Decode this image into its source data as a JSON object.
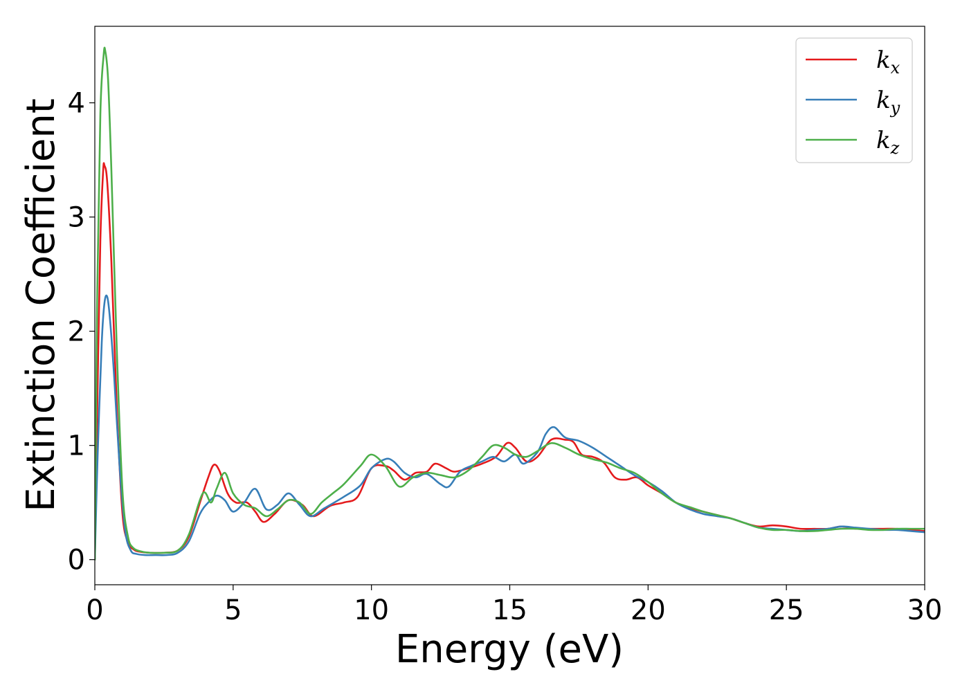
{
  "chart_data": {
    "type": "line",
    "title": "",
    "xlabel": "Energy (eV)",
    "ylabel": "Extinction Coefficient",
    "xlim": [
      0,
      30
    ],
    "ylim": [
      -0.22,
      4.67
    ],
    "xticks": [
      0,
      5,
      10,
      15,
      20,
      25,
      30
    ],
    "xtick_labels": [
      "0",
      "5",
      "10",
      "15",
      "20",
      "25",
      "30"
    ],
    "yticks": [
      0,
      1,
      2,
      3,
      4
    ],
    "ytick_labels": [
      "0",
      "1",
      "2",
      "3",
      "4"
    ],
    "grid": false,
    "legend_position": "top-right",
    "series": [
      {
        "name": "kx",
        "legend_base": "k",
        "legend_sub": "x",
        "color": "#e41a1c",
        "x": [
          0,
          0.1,
          0.2,
          0.3,
          0.35,
          0.45,
          0.6,
          0.8,
          1.0,
          1.2,
          1.4,
          1.6,
          2.0,
          2.5,
          3.0,
          3.4,
          3.8,
          4.1,
          4.3,
          4.5,
          4.8,
          5.1,
          5.5,
          5.8,
          6.1,
          6.5,
          7.0,
          7.5,
          7.9,
          8.5,
          9.0,
          9.5,
          10.0,
          10.5,
          10.8,
          11.2,
          11.6,
          12.0,
          12.3,
          12.7,
          13.0,
          13.5,
          14.0,
          14.5,
          14.9,
          15.2,
          15.6,
          16.0,
          16.5,
          17.0,
          17.3,
          17.6,
          18.0,
          18.4,
          18.8,
          19.2,
          19.6,
          20.0,
          20.5,
          21.0,
          21.5,
          22.0,
          22.5,
          23.0,
          23.5,
          24.0,
          24.5,
          25.0,
          25.5,
          26.0,
          26.5,
          27.0,
          27.5,
          28.0,
          28.5,
          29.0,
          29.5,
          30.0
        ],
        "y": [
          0.0,
          1.5,
          2.8,
          3.4,
          3.45,
          3.3,
          2.6,
          1.3,
          0.4,
          0.15,
          0.09,
          0.07,
          0.06,
          0.06,
          0.08,
          0.2,
          0.5,
          0.72,
          0.83,
          0.78,
          0.58,
          0.5,
          0.5,
          0.42,
          0.33,
          0.4,
          0.52,
          0.48,
          0.38,
          0.47,
          0.5,
          0.55,
          0.8,
          0.82,
          0.78,
          0.7,
          0.76,
          0.77,
          0.84,
          0.8,
          0.77,
          0.8,
          0.84,
          0.9,
          1.02,
          0.98,
          0.86,
          0.9,
          1.05,
          1.05,
          1.03,
          0.92,
          0.9,
          0.85,
          0.72,
          0.7,
          0.72,
          0.65,
          0.58,
          0.5,
          0.45,
          0.42,
          0.39,
          0.36,
          0.32,
          0.29,
          0.3,
          0.29,
          0.27,
          0.27,
          0.27,
          0.29,
          0.27,
          0.27,
          0.27,
          0.27,
          0.26,
          0.25
        ]
      },
      {
        "name": "ky",
        "legend_base": "k",
        "legend_sub": "y",
        "color": "#377eb8",
        "x": [
          0,
          0.1,
          0.25,
          0.35,
          0.45,
          0.55,
          0.7,
          0.9,
          1.1,
          1.3,
          1.5,
          1.8,
          2.2,
          2.6,
          3.0,
          3.4,
          3.8,
          4.1,
          4.4,
          4.7,
          5.0,
          5.4,
          5.8,
          6.2,
          6.6,
          7.0,
          7.4,
          7.8,
          8.3,
          9.0,
          9.6,
          10.0,
          10.5,
          10.8,
          11.2,
          11.6,
          12.0,
          12.5,
          12.8,
          13.2,
          13.6,
          14.0,
          14.4,
          14.8,
          15.2,
          15.5,
          16.0,
          16.3,
          16.6,
          17.0,
          17.5,
          18.0,
          18.5,
          19.0,
          19.5,
          20.0,
          20.5,
          21.0,
          21.5,
          22.0,
          22.5,
          23.0,
          23.5,
          24.0,
          24.5,
          25.0,
          25.5,
          26.0,
          26.5,
          27.0,
          27.5,
          28.0,
          28.5,
          29.0,
          29.5,
          30.0
        ],
        "y": [
          0.0,
          0.9,
          1.9,
          2.25,
          2.3,
          2.1,
          1.6,
          0.8,
          0.25,
          0.08,
          0.05,
          0.04,
          0.04,
          0.04,
          0.06,
          0.16,
          0.4,
          0.5,
          0.56,
          0.52,
          0.42,
          0.5,
          0.62,
          0.44,
          0.48,
          0.58,
          0.48,
          0.38,
          0.45,
          0.55,
          0.65,
          0.8,
          0.88,
          0.86,
          0.76,
          0.72,
          0.75,
          0.66,
          0.64,
          0.77,
          0.82,
          0.86,
          0.9,
          0.86,
          0.92,
          0.84,
          0.94,
          1.1,
          1.16,
          1.07,
          1.04,
          0.98,
          0.9,
          0.82,
          0.74,
          0.68,
          0.6,
          0.5,
          0.44,
          0.4,
          0.38,
          0.36,
          0.32,
          0.28,
          0.27,
          0.26,
          0.25,
          0.26,
          0.27,
          0.29,
          0.28,
          0.27,
          0.26,
          0.26,
          0.25,
          0.24
        ]
      },
      {
        "name": "kz",
        "legend_base": "k",
        "legend_sub": "z",
        "color": "#4daf4a",
        "x": [
          0,
          0.08,
          0.2,
          0.32,
          0.38,
          0.48,
          0.6,
          0.8,
          1.0,
          1.2,
          1.4,
          1.7,
          2.0,
          2.5,
          3.0,
          3.4,
          3.9,
          4.2,
          4.4,
          4.7,
          5.0,
          5.4,
          5.8,
          6.2,
          6.6,
          7.0,
          7.4,
          7.8,
          8.2,
          8.6,
          9.0,
          9.6,
          10.0,
          10.5,
          11.0,
          11.5,
          12.0,
          12.5,
          13.0,
          13.5,
          14.0,
          14.4,
          14.8,
          15.2,
          15.6,
          16.0,
          16.5,
          17.0,
          17.5,
          18.0,
          18.5,
          19.0,
          19.5,
          20.0,
          20.5,
          21.0,
          21.5,
          22.0,
          22.5,
          23.0,
          23.5,
          24.0,
          24.5,
          25.0,
          25.5,
          26.0,
          26.5,
          27.0,
          27.5,
          28.0,
          28.5,
          29.0,
          29.5,
          30.0
        ],
        "y": [
          0.0,
          2.2,
          3.9,
          4.42,
          4.45,
          4.2,
          3.4,
          1.8,
          0.6,
          0.2,
          0.1,
          0.07,
          0.06,
          0.06,
          0.08,
          0.22,
          0.58,
          0.5,
          0.62,
          0.76,
          0.58,
          0.48,
          0.45,
          0.38,
          0.44,
          0.52,
          0.5,
          0.4,
          0.5,
          0.58,
          0.66,
          0.82,
          0.92,
          0.82,
          0.64,
          0.72,
          0.76,
          0.74,
          0.72,
          0.78,
          0.9,
          1.0,
          0.98,
          0.92,
          0.9,
          0.95,
          1.02,
          0.98,
          0.92,
          0.88,
          0.85,
          0.8,
          0.76,
          0.68,
          0.58,
          0.5,
          0.46,
          0.42,
          0.39,
          0.36,
          0.32,
          0.28,
          0.26,
          0.26,
          0.25,
          0.25,
          0.26,
          0.27,
          0.27,
          0.26,
          0.26,
          0.27,
          0.27,
          0.27
        ]
      }
    ]
  }
}
